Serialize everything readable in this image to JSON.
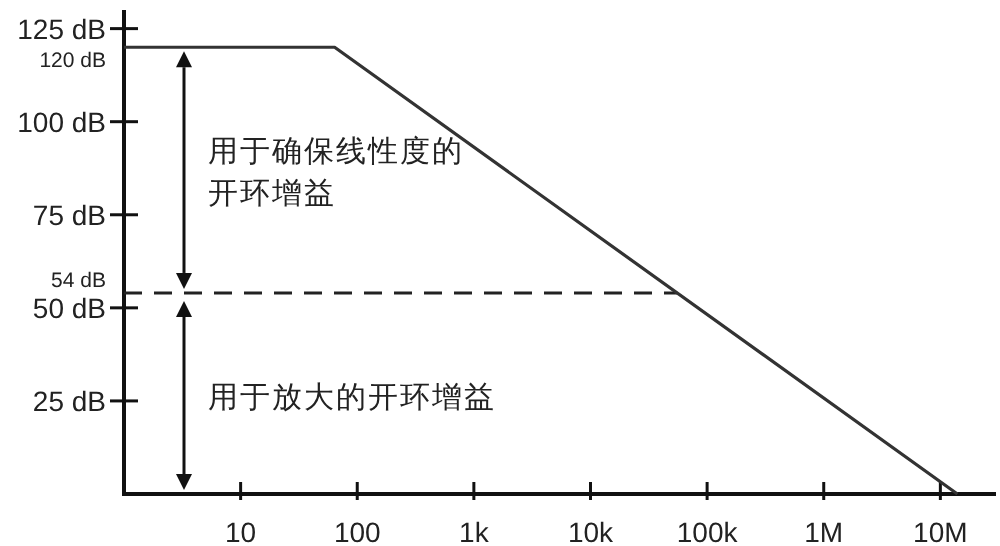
{
  "chart_data": {
    "type": "line",
    "log": "x",
    "grid": false,
    "marker": "none",
    "xlim": [
      1,
      30000000
    ],
    "ylim": [
      0,
      130
    ],
    "xticks": [
      {
        "value": 10,
        "label": "10"
      },
      {
        "value": 100,
        "label": "100"
      },
      {
        "value": 1000,
        "label": "1k"
      },
      {
        "value": 10000,
        "label": "10k"
      },
      {
        "value": 100000,
        "label": "100k"
      },
      {
        "value": 1000000,
        "label": "1M"
      },
      {
        "value": 10000000,
        "label": "10M"
      }
    ],
    "yticks": [
      {
        "value": 25,
        "label": "25 dB"
      },
      {
        "value": 50,
        "label": "50 dB"
      },
      {
        "value": 54,
        "label": "54 dB"
      },
      {
        "value": 75,
        "label": "75 dB"
      },
      {
        "value": 100,
        "label": "100 dB"
      },
      {
        "value": 120,
        "label": "120 dB"
      },
      {
        "value": 125,
        "label": "125 dB"
      }
    ],
    "series": [
      {
        "color": "#333333",
        "line_style": "solid",
        "x": [
          1,
          64,
          14000000
        ],
        "values": [
          120,
          120,
          0
        ]
      }
    ],
    "ref_lines": [
      {
        "axis": "y",
        "value": 54,
        "color": "#222222",
        "line_style": "dashed"
      }
    ],
    "annotations": [
      "用于确保线性度的开环增益",
      "用于放大的开环增益"
    ]
  }
}
